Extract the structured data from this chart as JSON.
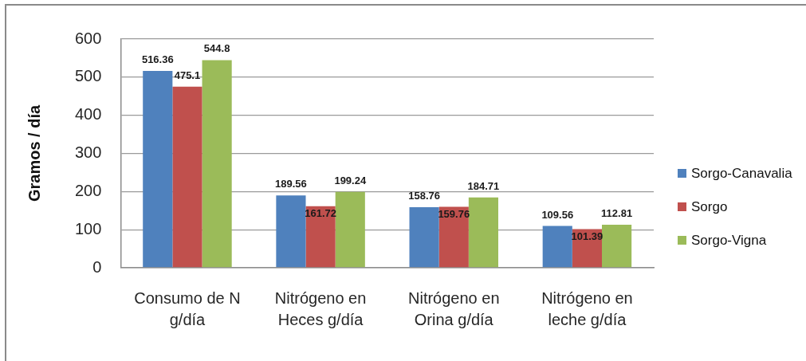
{
  "chart_data": {
    "type": "bar",
    "ylabel": "Gramos / día",
    "categories": [
      "Consumo de N g/día",
      "Nitrógeno en Heces g/día",
      "Nitrógeno en Orina g/día",
      "Nitrógeno en leche g/día"
    ],
    "series": [
      {
        "name": "Sorgo-Canavalia",
        "color": "#4f81bd",
        "values": [
          516.36,
          189.56,
          158.76,
          109.56
        ]
      },
      {
        "name": "Sorgo",
        "color": "#c0504d",
        "values": [
          475.1,
          161.72,
          159.76,
          101.39
        ]
      },
      {
        "name": "Sorgo-Vigna",
        "color": "#9bbb59",
        "values": [
          544.8,
          199.24,
          184.71,
          112.81
        ]
      }
    ],
    "ylim": [
      0,
      600
    ],
    "yticks": [
      0,
      100,
      200,
      300,
      400,
      500,
      600
    ],
    "grid": "y",
    "legend": "right",
    "data_labels": true
  }
}
